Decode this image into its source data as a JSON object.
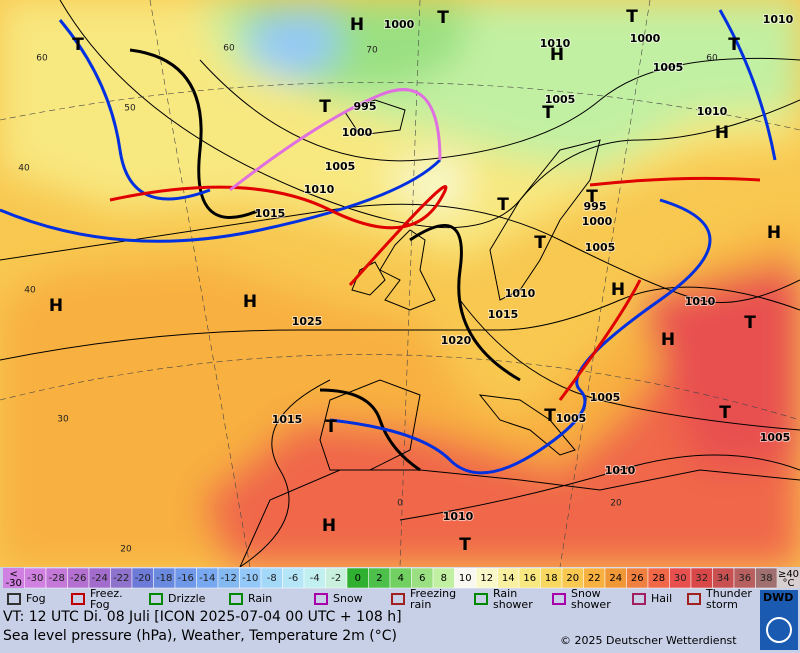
{
  "map": {
    "isobar_labels": [
      "1000",
      "1010",
      "1000",
      "1005",
      "1010",
      "1005",
      "1010",
      "995",
      "1000",
      "1005",
      "1010",
      "1015",
      "995",
      "1000",
      "1005",
      "1025",
      "1010",
      "1015",
      "1020",
      "1010",
      "1005",
      "1005",
      "1015",
      "1010",
      "1005",
      "1010"
    ],
    "high_labels": [
      "H",
      "H",
      "H",
      "H",
      "H",
      "H",
      "H",
      "H",
      "H"
    ],
    "low_labels": [
      "T",
      "T",
      "T",
      "T",
      "T",
      "T",
      "T",
      "T",
      "T",
      "T",
      "T",
      "T",
      "T",
      "T"
    ],
    "isotherm_labels": [
      "60",
      "50",
      "40",
      "40",
      "30",
      "20",
      "0",
      "20",
      "70",
      "60",
      "60"
    ]
  },
  "legend": {
    "below": {
      "symbol": "<",
      "value": "-30"
    },
    "scale": [
      {
        "label": "-30",
        "color": "#d080e0"
      },
      {
        "label": "-28",
        "color": "#c478d8"
      },
      {
        "label": "-26",
        "color": "#b470d0"
      },
      {
        "label": "-24",
        "color": "#a26ccc"
      },
      {
        "label": "-22",
        "color": "#8e72cc"
      },
      {
        "label": "-20",
        "color": "#6c7ad8"
      },
      {
        "label": "-18",
        "color": "#6a8ae0"
      },
      {
        "label": "-16",
        "color": "#7098e8"
      },
      {
        "label": "-14",
        "color": "#78a8f0"
      },
      {
        "label": "-12",
        "color": "#84b8f0"
      },
      {
        "label": "-10",
        "color": "#94c8f8"
      },
      {
        "label": "-8",
        "color": "#a4d8f8"
      },
      {
        "label": "-6",
        "color": "#b4e6f8"
      },
      {
        "label": "-4",
        "color": "#c2f0f0"
      },
      {
        "label": "-2",
        "color": "#c8f0dc"
      },
      {
        "label": "0",
        "color": "#30b030"
      },
      {
        "label": "2",
        "color": "#4cc04a"
      },
      {
        "label": "4",
        "color": "#72d062"
      },
      {
        "label": "6",
        "color": "#9ae082"
      },
      {
        "label": "8",
        "color": "#c2f0a2"
      },
      {
        "label": "10",
        "color": "#f8f8f0"
      },
      {
        "label": "12",
        "color": "#f8f8c8"
      },
      {
        "label": "14",
        "color": "#f8f0a0"
      },
      {
        "label": "16",
        "color": "#f8e880"
      },
      {
        "label": "18",
        "color": "#f8d860"
      },
      {
        "label": "20",
        "color": "#f8c850"
      },
      {
        "label": "22",
        "color": "#f8b040"
      },
      {
        "label": "24",
        "color": "#f09838"
      },
      {
        "label": "26",
        "color": "#f08040"
      },
      {
        "label": "28",
        "color": "#f06848"
      },
      {
        "label": "30",
        "color": "#e85050"
      },
      {
        "label": "32",
        "color": "#d84848"
      },
      {
        "label": "34",
        "color": "#c85050"
      },
      {
        "label": "36",
        "color": "#b86060"
      },
      {
        "label": "38",
        "color": "#a07070"
      }
    ],
    "above": {
      "symbol": "≥40",
      "unit": "°C",
      "color": "#d8d0d0"
    },
    "symbols": [
      [
        "Fog"
      ],
      [
        "Freez.",
        "Fog"
      ],
      [
        "Drizzle"
      ],
      [
        "Rain"
      ],
      [
        "Snow"
      ],
      [
        "Freezing",
        "rain"
      ],
      [
        "Rain",
        "shower"
      ],
      [
        "Snow",
        "shower"
      ],
      [
        "Hail"
      ],
      [
        "Thunder",
        "storm"
      ]
    ]
  },
  "footer": {
    "valid_time": "VT: 12 UTC Di.  08 Juli [ICON 2025-07-04  00 UTC + 108 h]",
    "description": "Sea level pressure (hPa), Weather, Temperature 2m (°C)",
    "copyright": "© 2025 Deutscher Wetterdienst",
    "logo": "DWD"
  }
}
